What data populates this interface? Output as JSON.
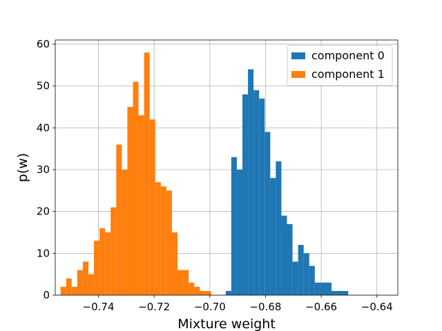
{
  "chart_data": {
    "type": "bar",
    "subtype": "histogram",
    "xlabel": "Mixture weight",
    "ylabel": "p(w)",
    "xlim": [
      -0.7555,
      -0.6325
    ],
    "ylim": [
      0,
      61
    ],
    "x_ticks": [
      -0.74,
      -0.72,
      -0.7,
      -0.68,
      -0.66,
      -0.64
    ],
    "x_tick_labels": [
      "−0.74",
      "−0.72",
      "−0.70",
      "−0.68",
      "−0.66",
      "−0.64"
    ],
    "y_ticks": [
      0,
      10,
      20,
      30,
      40,
      50,
      60
    ],
    "y_tick_labels": [
      "0",
      "10",
      "20",
      "30",
      "40",
      "50",
      "60"
    ],
    "grid": true,
    "legend_position": "top-right",
    "series": [
      {
        "name": "component 0",
        "color": "#1f77b4",
        "bin_edges": [
          -0.7063,
          -0.7043,
          -0.7023,
          -0.7003,
          -0.6983,
          -0.6963,
          -0.6943,
          -0.6923,
          -0.6903,
          -0.6883,
          -0.6863,
          -0.6843,
          -0.6823,
          -0.6803,
          -0.6783,
          -0.6763,
          -0.6743,
          -0.6723,
          -0.6703,
          -0.6683,
          -0.6663,
          -0.6643,
          -0.6623,
          -0.6603,
          -0.6583,
          -0.6563,
          -0.6543,
          -0.6523,
          -0.6503,
          -0.6483,
          -0.6463,
          -0.6443,
          -0.6423,
          -0.6403,
          -0.6383,
          -0.6363
        ],
        "counts": [
          0,
          1,
          0,
          0,
          0,
          0,
          1,
          33,
          30,
          48,
          54,
          49,
          47,
          39,
          28,
          32,
          19,
          17,
          8,
          12,
          10,
          7,
          3,
          3,
          3,
          1,
          1,
          1,
          0,
          0,
          0,
          0,
          0,
          0,
          0
        ]
      },
      {
        "name": "component 1",
        "color": "#ff7f0e",
        "bin_edges": [
          -0.7536,
          -0.7516,
          -0.7496,
          -0.7476,
          -0.7456,
          -0.7436,
          -0.7416,
          -0.7396,
          -0.7376,
          -0.7356,
          -0.7336,
          -0.7316,
          -0.7296,
          -0.7276,
          -0.7256,
          -0.7236,
          -0.7216,
          -0.7196,
          -0.7176,
          -0.7156,
          -0.7136,
          -0.7116,
          -0.7096,
          -0.7076,
          -0.7056,
          -0.7036,
          -0.7016,
          -0.6996,
          -0.6976,
          -0.6956,
          -0.6936,
          -0.6916,
          -0.6896,
          -0.6876,
          -0.6856,
          -0.6836,
          -0.6816,
          -0.6796,
          -0.6776,
          -0.6756,
          -0.6736,
          -0.6716,
          -0.6696
        ],
        "counts": [
          2,
          4,
          2,
          6,
          8,
          5,
          13,
          16,
          15,
          21,
          36,
          30,
          45,
          51,
          43,
          58,
          42,
          27,
          26,
          25,
          15,
          6,
          6,
          3,
          2,
          1,
          1,
          0,
          0,
          0,
          0,
          0,
          0,
          0,
          0,
          0,
          0,
          0,
          0,
          0,
          0,
          0
        ]
      }
    ]
  }
}
